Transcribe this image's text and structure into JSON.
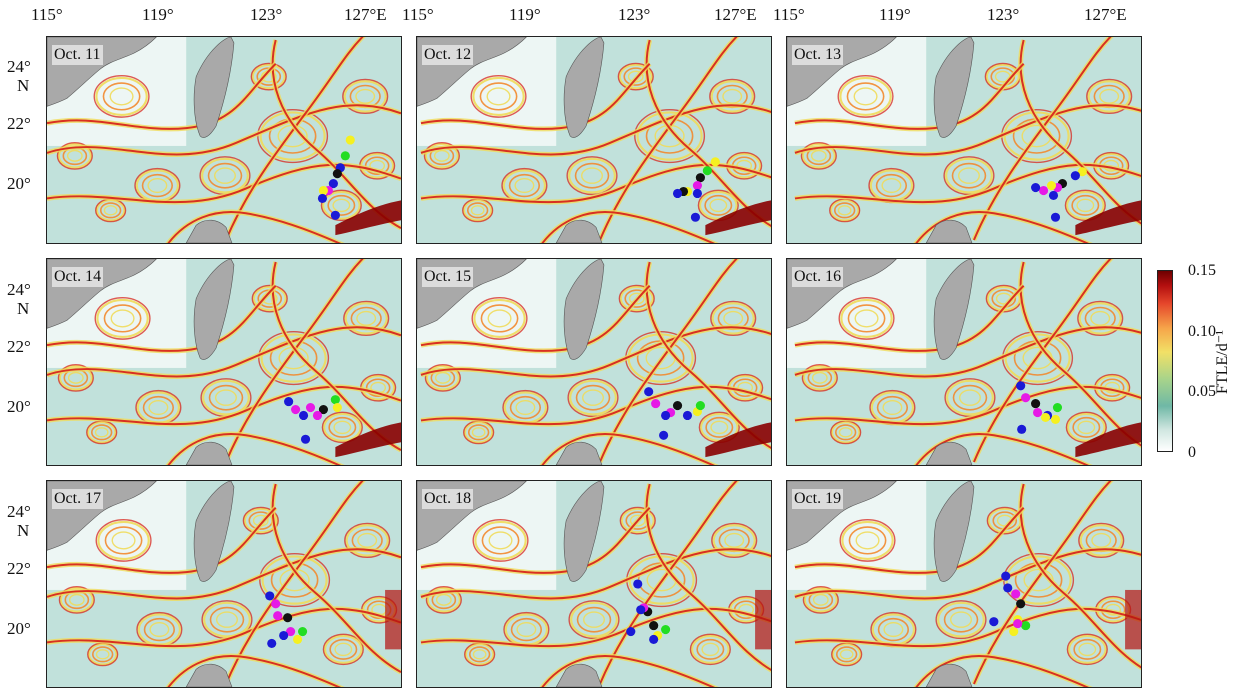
{
  "top_lon_labels": [
    {
      "panel_col": 0,
      "labels": [
        "115°",
        "119°",
        "123°",
        "127°E"
      ]
    },
    {
      "panel_col": 1,
      "labels": [
        "115°",
        "119°",
        "123°",
        "127°E"
      ]
    },
    {
      "panel_col": 2,
      "labels": [
        "115°",
        "119°",
        "123°",
        "127°E"
      ]
    }
  ],
  "lat_labels": [
    {
      "row": 0,
      "labels": [
        "24°",
        "N",
        "22°",
        "20°"
      ]
    },
    {
      "row": 1,
      "labels": [
        "24°",
        "N",
        "22°",
        "20°"
      ]
    },
    {
      "row": 2,
      "labels": [
        "24°",
        "N",
        "22°",
        "20°"
      ]
    }
  ],
  "panels": [
    {
      "date": "Oct. 11"
    },
    {
      "date": "Oct. 12"
    },
    {
      "date": "Oct. 13"
    },
    {
      "date": "Oct. 14"
    },
    {
      "date": "Oct. 15"
    },
    {
      "date": "Oct. 16"
    },
    {
      "date": "Oct. 17"
    },
    {
      "date": "Oct. 18"
    },
    {
      "date": "Oct. 19"
    }
  ],
  "colorbar": {
    "title": "FTLE/d⁻¹",
    "ticks": [
      "0.15",
      "0.10",
      "0.05",
      "0"
    ],
    "colors": [
      "#ffffff",
      "#6fb8a6",
      "#f2e066",
      "#e5462b",
      "#6e0000"
    ]
  },
  "marker_colors": {
    "blue": "#1a1ad6",
    "magenta": "#e61ae6",
    "black": "#111111",
    "green": "#22dd22",
    "yellow": "#f5f020"
  },
  "colors": {
    "land": "#a9a9a9",
    "sea_base": "#8ec9bd",
    "ridge_red": "#d7261c",
    "ridge_orange": "#f28a2e",
    "ridge_yellow": "#f0dc5a"
  }
}
